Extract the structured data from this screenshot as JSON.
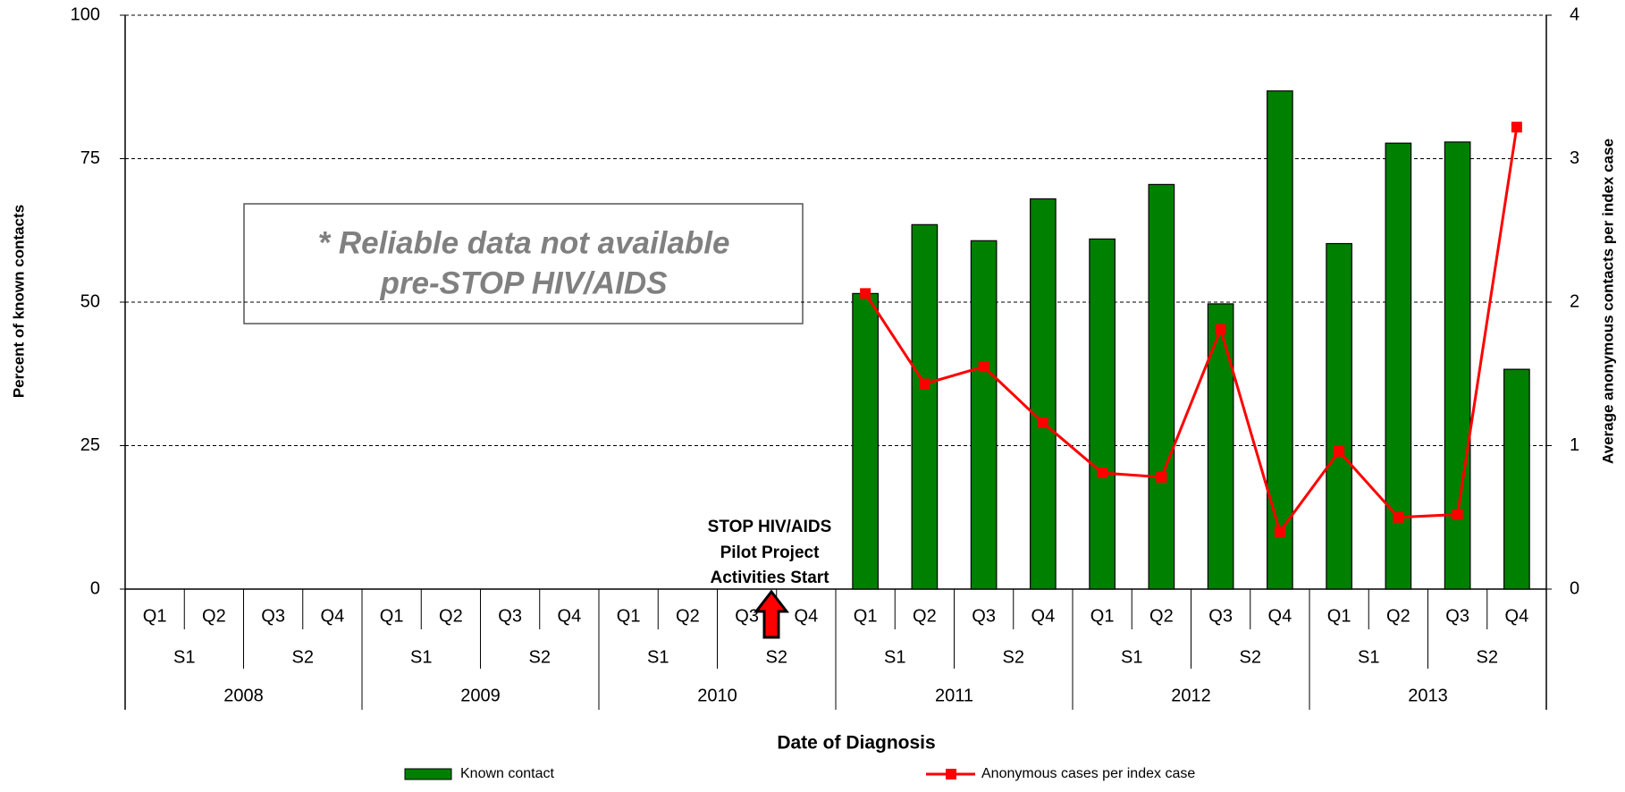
{
  "chart_data": {
    "type": "bar_line",
    "xlabel": "Date of Diagnosis",
    "ylabel": "Percent of known contacts",
    "y2label": "Average anonymous contacts per index case",
    "categories": [
      "Q1",
      "Q2",
      "Q3",
      "Q4",
      "Q1",
      "Q2",
      "Q3",
      "Q4",
      "Q1",
      "Q2",
      "Q3",
      "Q4",
      "Q1",
      "Q2",
      "Q3",
      "Q4",
      "Q1",
      "Q2",
      "Q3",
      "Q4",
      "Q1",
      "Q2",
      "Q3",
      "Q4"
    ],
    "x_groups": {
      "halves": [
        "S1",
        "S2",
        "S1",
        "S2",
        "S1",
        "S2",
        "S1",
        "S2",
        "S1",
        "S2",
        "S1",
        "S2"
      ],
      "years": [
        "2008",
        "2009",
        "2010",
        "2011",
        "2012",
        "2013"
      ]
    },
    "series": [
      {
        "name": "Known contact",
        "type": "bar",
        "color": "#008000",
        "values": [
          null,
          null,
          null,
          null,
          null,
          null,
          null,
          null,
          null,
          null,
          null,
          null,
          51.5,
          63.5,
          60.7,
          68,
          61,
          70.5,
          49.7,
          86.8,
          60.2,
          77.7,
          77.9,
          38.3
        ]
      },
      {
        "name": "Anonymous cases per index case",
        "type": "line",
        "color": "#ff0000",
        "axis": "y2",
        "values": [
          null,
          null,
          null,
          null,
          null,
          null,
          null,
          null,
          null,
          null,
          null,
          null,
          2.06,
          1.43,
          1.55,
          1.16,
          0.81,
          0.78,
          1.81,
          0.4,
          0.96,
          0.5,
          0.52,
          3.22
        ]
      }
    ],
    "ylim": [
      0,
      100
    ],
    "yticks": [
      0,
      25,
      50,
      75,
      100
    ],
    "y2lim": [
      0,
      4
    ],
    "y2ticks": [
      0,
      1,
      2,
      3,
      4
    ],
    "grid": true,
    "legend": "bottom",
    "annotations": {
      "note": [
        "* Reliable data not available",
        "pre-STOP HIV/AIDS"
      ],
      "start": [
        "STOP HIV/AIDS",
        "Pilot Project",
        "Activities Start"
      ]
    }
  }
}
